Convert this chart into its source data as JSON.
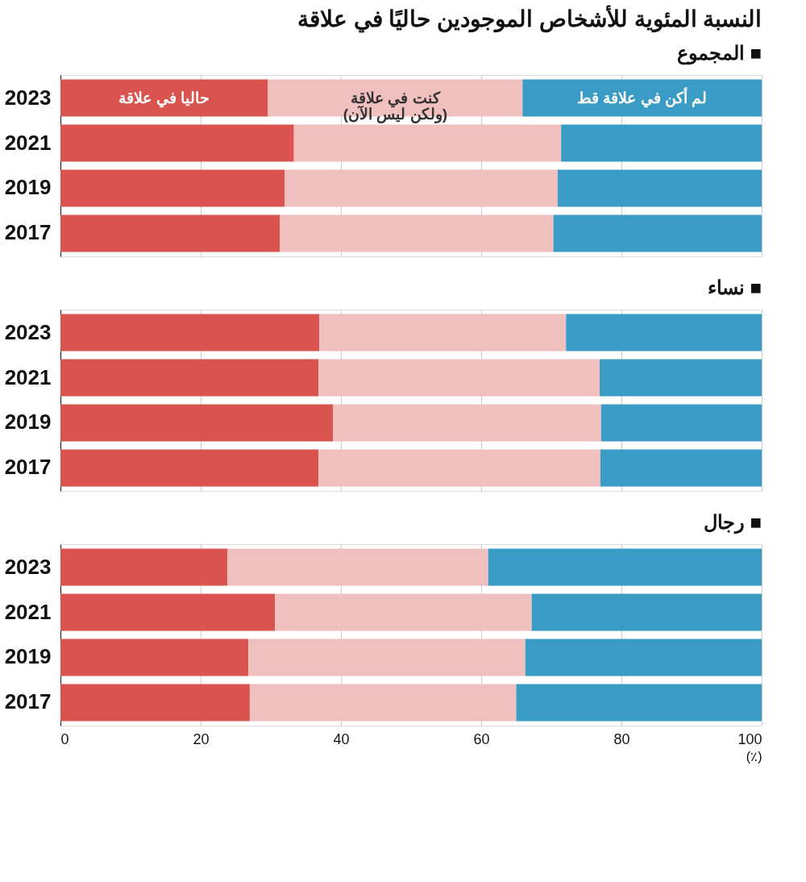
{
  "chart_data": [
    {
      "type": "bar",
      "orientation": "horizontal",
      "stacked": true,
      "title": "النسبة المئوية للأشخاص الموجودين حاليًا في علاقة",
      "subtitle": "المجموع ■",
      "categories": [
        "2023",
        "2021",
        "2019",
        "2017"
      ],
      "xlim": [
        0,
        100
      ],
      "xticks": [
        0,
        20,
        40,
        60,
        80,
        100
      ],
      "grid": "x",
      "tick_labels": "y",
      "series": [
        {
          "name": "حاليا في علاقة",
          "color": "#d9534f",
          "values": [
            29.6,
            33.3,
            32.0,
            31.3
          ]
        },
        {
          "name": "كنت في علاقة\n(ولكن ليس الآن)",
          "color": "#f0c0bf",
          "values": [
            36.3,
            38.1,
            38.9,
            39.0
          ]
        },
        {
          "name": "لم أكن في علاقة قط",
          "color": "#3a9cc4",
          "values": [
            34.1,
            28.6,
            29.1,
            29.7
          ]
        }
      ]
    },
    {
      "type": "bar",
      "orientation": "horizontal",
      "stacked": true,
      "subtitle": "نساء ■",
      "categories": [
        "2023",
        "2021",
        "2019",
        "2017"
      ],
      "xlim": [
        0,
        100
      ],
      "xticks": [
        0,
        20,
        40,
        60,
        80,
        100
      ],
      "grid": "x",
      "tick_labels": "y",
      "series": [
        {
          "color": "#d9534f",
          "values": [
            36.9,
            36.8,
            38.9,
            36.8
          ]
        },
        {
          "color": "#f0c0bf",
          "values": [
            35.2,
            40.1,
            38.2,
            40.2
          ]
        },
        {
          "color": "#3a9cc4",
          "values": [
            27.9,
            23.1,
            22.9,
            23.0
          ]
        }
      ]
    },
    {
      "type": "bar",
      "orientation": "horizontal",
      "stacked": true,
      "subtitle": "رجال ■",
      "categories": [
        "2023",
        "2021",
        "2019",
        "2017"
      ],
      "xlim": [
        0,
        100
      ],
      "xticks": [
        0,
        20,
        40,
        60,
        80,
        100
      ],
      "xlabel": "(٪)",
      "grid": "x",
      "series": [
        {
          "color": "#d9534f",
          "values": [
            23.8,
            30.6,
            26.8,
            27.0
          ]
        },
        {
          "color": "#f0c0bf",
          "values": [
            37.2,
            36.6,
            39.5,
            38.0
          ]
        },
        {
          "color": "#3a9cc4",
          "values": [
            39.0,
            32.8,
            33.7,
            35.0
          ]
        }
      ]
    }
  ]
}
